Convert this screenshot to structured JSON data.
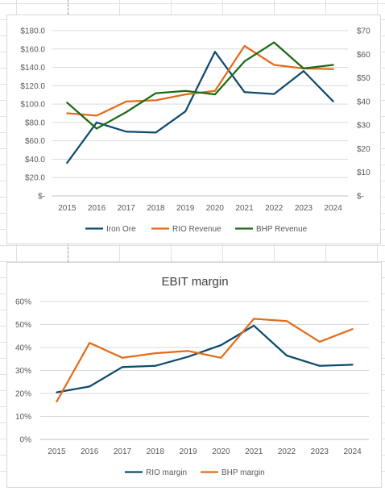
{
  "chart_data": [
    {
      "type": "line",
      "title": "",
      "categories": [
        "2015",
        "2016",
        "2017",
        "2018",
        "2019",
        "2020",
        "2021",
        "2022",
        "2023",
        "2024"
      ],
      "y_left": {
        "min": 0,
        "max": 180,
        "step": 20,
        "tick_labels": [
          "$-",
          "$20.0",
          "$40.0",
          "$60.0",
          "$80.0",
          "$100.0",
          "$120.0",
          "$140.0",
          "$160.0",
          "$180.0"
        ]
      },
      "y_right": {
        "min": 0,
        "max": 70,
        "step": 10,
        "tick_labels": [
          "$-",
          "$10",
          "$20",
          "$30",
          "$40",
          "$50",
          "$60",
          "$70"
        ]
      },
      "grid": true,
      "legend_position": "bottom",
      "series": [
        {
          "name": "Iron Ore",
          "color": "#0e4b6e",
          "axis": "left",
          "values": [
            36,
            80,
            70,
            69,
            92,
            157,
            113,
            111,
            136,
            103
          ]
        },
        {
          "name": "RIO Revenue",
          "color": "#e46c1a",
          "axis": "right",
          "values": [
            35,
            34,
            40,
            40.5,
            43,
            44.5,
            63.5,
            55.5,
            54,
            53.7
          ]
        },
        {
          "name": "BHP Revenue",
          "color": "#1e6a16",
          "axis": "right",
          "values": [
            39.5,
            28.5,
            35.5,
            43.5,
            44.5,
            43,
            57,
            65,
            54,
            55.5
          ]
        }
      ]
    },
    {
      "type": "line",
      "title": "EBIT margin",
      "categories": [
        "2015",
        "2016",
        "2017",
        "2018",
        "2019",
        "2020",
        "2021",
        "2022",
        "2023",
        "2024"
      ],
      "y_left": {
        "min": 0,
        "max": 60,
        "step": 10,
        "tick_labels": [
          "0%",
          "10%",
          "20%",
          "30%",
          "40%",
          "50%",
          "60%"
        ]
      },
      "grid": true,
      "legend_position": "bottom",
      "series": [
        {
          "name": "RIO margin",
          "color": "#0e4b6e",
          "axis": "left",
          "values": [
            20.5,
            23,
            31.5,
            32,
            36,
            41,
            49.5,
            36.5,
            32,
            32.5
          ]
        },
        {
          "name": "BHP margin",
          "color": "#e46c1a",
          "axis": "left",
          "values": [
            16.5,
            42,
            35.5,
            37.5,
            38.5,
            35.5,
            52.5,
            51.5,
            42.5,
            48
          ]
        }
      ]
    }
  ]
}
